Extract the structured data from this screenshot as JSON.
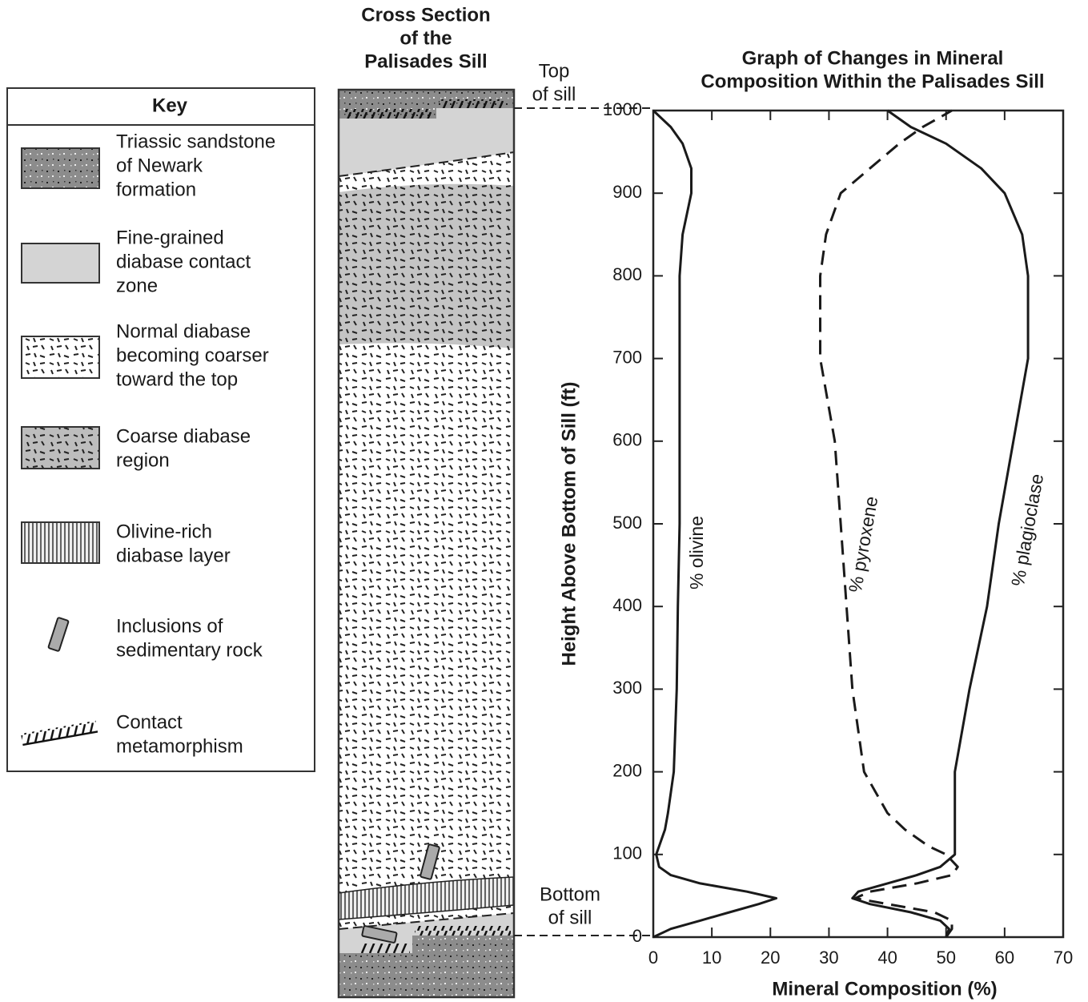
{
  "key": {
    "title": "Key",
    "items": [
      {
        "label": [
          "Triassic sandstone",
          "of Newark",
          "formation"
        ]
      },
      {
        "label": [
          "Fine-grained",
          "diabase contact",
          "zone"
        ]
      },
      {
        "label": [
          "Normal diabase",
          "becoming coarser",
          "toward the top"
        ]
      },
      {
        "label": [
          "Coarse diabase",
          "region"
        ]
      },
      {
        "label": [
          "Olivine-rich",
          "diabase layer"
        ]
      },
      {
        "label": [
          "Inclusions of",
          "sedimentary rock"
        ]
      },
      {
        "label": [
          "Contact",
          "metamorphism"
        ]
      }
    ]
  },
  "cross_section": {
    "title": [
      "Cross Section",
      "of the",
      "Palisades Sill"
    ],
    "top_label": [
      "Top",
      "of sill"
    ],
    "bottom_label": [
      "Bottom",
      "of sill"
    ]
  },
  "chart_data": {
    "type": "line",
    "title": [
      "Graph of Changes in Mineral",
      "Composition Within the Palisades Sill"
    ],
    "x_label": "Mineral Composition (%)",
    "y_label": "Height Above Bottom of Sill (ft)",
    "y": [
      0,
      10,
      20,
      30,
      40,
      47,
      55,
      65,
      75,
      85,
      100,
      110,
      130,
      150,
      200,
      300,
      400,
      500,
      600,
      700,
      800,
      850,
      900,
      930,
      960,
      980,
      1000
    ],
    "series": [
      {
        "name": "% olivine",
        "color": "#1a1a1a",
        "line_style": "solid",
        "values": [
          0,
          3,
          8,
          13,
          18,
          21,
          16,
          8,
          3,
          1,
          0.5,
          1,
          2,
          2.5,
          3.5,
          4,
          4.2,
          4.5,
          4.5,
          4.5,
          4.5,
          5,
          6.5,
          6.5,
          5,
          3,
          0
        ]
      },
      {
        "name": "% pyroxene",
        "color": "#1a1a1a",
        "line_style": "dashed",
        "values": [
          50,
          51,
          51,
          48,
          40,
          34.5,
          37,
          45,
          51,
          52,
          50,
          47,
          43,
          40,
          36,
          34,
          33,
          32,
          31,
          28.5,
          28.5,
          29.5,
          32,
          37,
          42,
          46,
          51
        ]
      },
      {
        "name": "% plagioclase",
        "color": "#1a1a1a",
        "line_style": "solid",
        "values": [
          50,
          50.5,
          49,
          44,
          37,
          34,
          35,
          40,
          45,
          49,
          51.5,
          51.5,
          51.5,
          51.5,
          51.5,
          54,
          57,
          59,
          61.5,
          64,
          64,
          63,
          60,
          56,
          50,
          44,
          40
        ]
      }
    ],
    "xlim": [
      0,
      70
    ],
    "ylim": [
      0,
      1000
    ],
    "xticks": [
      0,
      10,
      20,
      30,
      40,
      50,
      60,
      70
    ],
    "yticks": [
      0,
      100,
      200,
      300,
      400,
      500,
      600,
      700,
      800,
      900,
      1000
    ]
  }
}
